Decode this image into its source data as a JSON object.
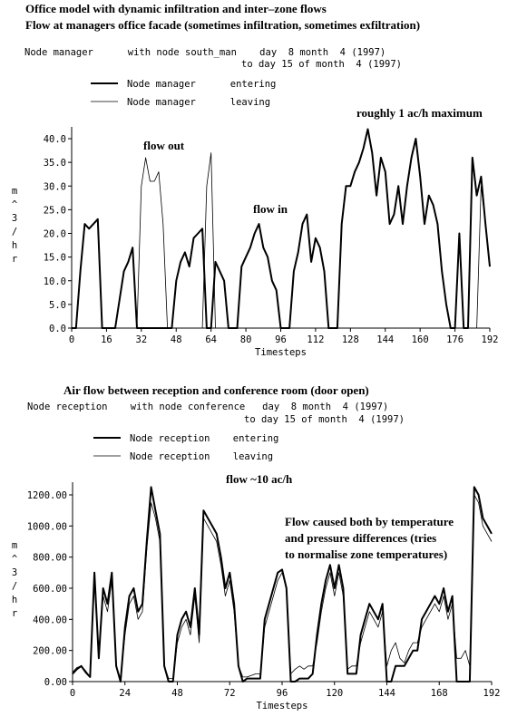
{
  "chart_data": [
    {
      "type": "line",
      "title": "Office model with dynamic infiltration and inter–zone flows",
      "subtitle": "Flow at managers office facade (sometimes infiltration, sometimes exfiltration)",
      "node_line": "Node manager      with node south_man    day  8 month  4 (1997)",
      "period_line": "to day 15 of month  4 (1997)",
      "x_label": "Timesteps",
      "y_label": "m^3/hr",
      "annotations": [
        "roughly 1 ac/h maximum",
        "flow out",
        "flow in"
      ],
      "xlim": [
        0,
        192
      ],
      "xticks": [
        0,
        16,
        32,
        48,
        64,
        80,
        96,
        112,
        128,
        144,
        160,
        176,
        192
      ],
      "ylim": [
        0,
        40
      ],
      "yticks": [
        {
          "value": 0,
          "label": "0.0"
        },
        {
          "value": 5,
          "label": "5.0"
        },
        {
          "value": 10,
          "label": "10.0"
        },
        {
          "value": 15,
          "label": "15.0"
        },
        {
          "value": 20,
          "label": "20.0"
        },
        {
          "value": 25,
          "label": "25.0"
        },
        {
          "value": 30,
          "label": "30.0"
        },
        {
          "value": 35,
          "label": "35.0"
        },
        {
          "value": 40,
          "label": "40.0"
        }
      ],
      "grid": false,
      "x": [
        0,
        2,
        4,
        6,
        8,
        10,
        12,
        14,
        16,
        18,
        20,
        22,
        24,
        26,
        28,
        30,
        32,
        34,
        36,
        38,
        40,
        42,
        44,
        46,
        48,
        50,
        52,
        54,
        56,
        58,
        60,
        62,
        64,
        66,
        68,
        70,
        72,
        74,
        76,
        78,
        80,
        82,
        84,
        86,
        88,
        90,
        92,
        94,
        96,
        98,
        100,
        102,
        104,
        106,
        108,
        110,
        112,
        114,
        116,
        118,
        120,
        122,
        124,
        126,
        128,
        130,
        132,
        134,
        136,
        138,
        140,
        142,
        144,
        146,
        148,
        150,
        152,
        154,
        156,
        158,
        160,
        162,
        164,
        166,
        168,
        170,
        172,
        174,
        176,
        178,
        180,
        182,
        184,
        186,
        188,
        190,
        192
      ],
      "series": [
        {
          "name": "Node manager      entering",
          "color": "#000000",
          "width": 2,
          "values": [
            0,
            0,
            12,
            22,
            21,
            22,
            23,
            0,
            0,
            0,
            0,
            6,
            12,
            14,
            17,
            0,
            0,
            0,
            0,
            0,
            0,
            0,
            0,
            0,
            10,
            14,
            16,
            13,
            19,
            20,
            21,
            0,
            0,
            14,
            12,
            10,
            0,
            0,
            0,
            13,
            15,
            17,
            20,
            22,
            17,
            15,
            10,
            8,
            0,
            0,
            0,
            12,
            16,
            22,
            24,
            14,
            19,
            17,
            12,
            0,
            0,
            0,
            22,
            30,
            30,
            33,
            35,
            38,
            42,
            37,
            28,
            36,
            33,
            22,
            24,
            30,
            22,
            30,
            36,
            40,
            32,
            22,
            28,
            26,
            22,
            12,
            5,
            0,
            0,
            20,
            0,
            0,
            36,
            28,
            32,
            22,
            13
          ]
        },
        {
          "name": "Node manager      leaving",
          "color": "#000000",
          "width": 0.8,
          "values": [
            0,
            0,
            0,
            0,
            0,
            0,
            0,
            0,
            0,
            0,
            0,
            0,
            0,
            0,
            0,
            0,
            30,
            36,
            31,
            31,
            33,
            22,
            0,
            0,
            0,
            0,
            0,
            0,
            0,
            0,
            0,
            30,
            37,
            0,
            0,
            0,
            0,
            0,
            0,
            0,
            0,
            0,
            0,
            0,
            0,
            0,
            0,
            0,
            0,
            0,
            0,
            0,
            0,
            0,
            0,
            0,
            0,
            0,
            0,
            0,
            0,
            0,
            0,
            0,
            0,
            0,
            0,
            0,
            0,
            0,
            0,
            0,
            0,
            0,
            0,
            0,
            0,
            0,
            0,
            0,
            0,
            0,
            0,
            0,
            0,
            0,
            0,
            0,
            0,
            0,
            0,
            0,
            0,
            0,
            30,
            22,
            13
          ]
        }
      ]
    },
    {
      "type": "line",
      "title": "Air flow between reception and conference room (door open)",
      "node_line": "Node reception    with node conference   day  8 month  4 (1997)",
      "period_line": "to day 15 of month  4 (1997)",
      "x_label": "Timesteps",
      "y_label": "m^3/hr",
      "annotations": [
        "flow ~10 ac/h",
        "Flow caused both by temperature",
        "and pressure differences (tries",
        "to normalise zone temperatures)"
      ],
      "xlim": [
        0,
        192
      ],
      "xticks": [
        0,
        24,
        48,
        72,
        96,
        120,
        144,
        168,
        192
      ],
      "ylim": [
        0,
        1200
      ],
      "yticks": [
        {
          "value": 0,
          "label": "0.00"
        },
        {
          "value": 200,
          "label": "200.00"
        },
        {
          "value": 400,
          "label": "400.00"
        },
        {
          "value": 600,
          "label": "600.00"
        },
        {
          "value": 800,
          "label": "800.00"
        },
        {
          "value": 1000,
          "label": "1000.00"
        },
        {
          "value": 1200,
          "label": "1200.00"
        }
      ],
      "grid": false,
      "x": [
        0,
        2,
        4,
        6,
        8,
        10,
        12,
        14,
        16,
        18,
        20,
        22,
        24,
        26,
        28,
        30,
        32,
        34,
        36,
        38,
        40,
        42,
        44,
        46,
        48,
        50,
        52,
        54,
        56,
        58,
        60,
        62,
        64,
        66,
        68,
        70,
        72,
        74,
        76,
        78,
        80,
        82,
        84,
        86,
        88,
        90,
        92,
        94,
        96,
        98,
        100,
        102,
        104,
        106,
        108,
        110,
        112,
        114,
        116,
        118,
        120,
        122,
        124,
        126,
        128,
        130,
        132,
        134,
        136,
        138,
        140,
        142,
        144,
        146,
        148,
        150,
        152,
        154,
        156,
        158,
        160,
        162,
        164,
        166,
        168,
        170,
        172,
        174,
        176,
        178,
        180,
        182,
        184,
        186,
        188,
        190,
        192
      ],
      "series": [
        {
          "name": "Node reception    entering",
          "color": "#000000",
          "width": 2,
          "values": [
            50,
            80,
            100,
            60,
            30,
            700,
            150,
            600,
            500,
            700,
            100,
            0,
            350,
            550,
            600,
            450,
            500,
            900,
            1250,
            1100,
            950,
            100,
            0,
            0,
            300,
            400,
            450,
            350,
            600,
            300,
            1100,
            1050,
            1000,
            950,
            800,
            600,
            700,
            500,
            100,
            0,
            20,
            20,
            20,
            20,
            400,
            500,
            600,
            700,
            720,
            600,
            0,
            0,
            20,
            20,
            20,
            50,
            300,
            500,
            650,
            750,
            600,
            750,
            600,
            50,
            50,
            50,
            300,
            400,
            500,
            450,
            400,
            500,
            0,
            0,
            100,
            100,
            100,
            150,
            200,
            200,
            400,
            450,
            500,
            550,
            500,
            600,
            450,
            550,
            0,
            0,
            0,
            0,
            1250,
            1200,
            1050,
            1000,
            950
          ]
        },
        {
          "name": "Node reception    leaving",
          "color": "#000000",
          "width": 0.8,
          "values": [
            60,
            90,
            100,
            70,
            30,
            650,
            150,
            550,
            450,
            650,
            100,
            20,
            300,
            500,
            550,
            400,
            450,
            850,
            1150,
            1050,
            900,
            100,
            20,
            20,
            250,
            350,
            400,
            300,
            550,
            250,
            1050,
            1000,
            950,
            900,
            750,
            550,
            650,
            450,
            100,
            30,
            30,
            40,
            50,
            50,
            350,
            450,
            550,
            650,
            700,
            600,
            50,
            80,
            100,
            80,
            100,
            100,
            250,
            450,
            600,
            700,
            550,
            700,
            550,
            80,
            100,
            100,
            250,
            350,
            450,
            400,
            350,
            450,
            100,
            200,
            250,
            150,
            120,
            200,
            250,
            250,
            350,
            400,
            450,
            500,
            450,
            550,
            400,
            500,
            150,
            150,
            200,
            100,
            1200,
            1150,
            1000,
            950,
            900
          ]
        }
      ]
    }
  ]
}
